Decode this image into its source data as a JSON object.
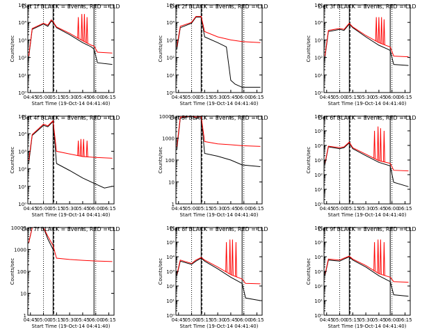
{
  "page": {
    "background": "#ffffff"
  },
  "colors": {
    "events": "#000000",
    "lld": "#ff0000",
    "axes": "#000000"
  },
  "chart_data": [
    {
      "type": "line",
      "title": "Det 1f BLACK = Events, RED = LLD",
      "xlabel": "Start Time (19-Oct-14 04:41:40)",
      "ylabel": "Counts/sec",
      "y_scale": "log",
      "ylim": [
        1,
        100000
      ],
      "yticks": [
        1,
        10,
        100,
        1000,
        10000,
        100000
      ],
      "ytick_labels": [
        "10⁰",
        "10¹",
        "10²",
        "10³",
        "10⁴",
        "10⁵"
      ],
      "xlim": [
        "04:42",
        "06:21"
      ],
      "xtick_labels": [
        "04:45",
        "05:00",
        "05:15",
        "05:30",
        "05:45",
        "06:00",
        "06:15"
      ],
      "lines": {
        "dotted": [
          "05:00",
          "06:00"
        ],
        "dashed": [
          "05:11"
        ],
        "solid": [
          "05:11",
          "05:58"
        ]
      },
      "series": [
        {
          "role": "events",
          "x": [
            "04:43",
            "04:47",
            "05:00",
            "05:05",
            "05:09",
            "05:11",
            "05:15",
            "05:30",
            "05:45",
            "05:55",
            "05:58",
            "06:02",
            "06:19"
          ],
          "y": [
            100,
            4000,
            8000,
            6000,
            12000,
            10000,
            5000,
            2000,
            700,
            400,
            300,
            50,
            40
          ]
        },
        {
          "role": "lld",
          "x": [
            "04:43",
            "04:47",
            "05:00",
            "05:05",
            "05:09",
            "05:11",
            "05:15",
            "05:30",
            "05:45",
            "05:55",
            "05:58",
            "06:02",
            "06:19"
          ],
          "y": [
            120,
            4500,
            9000,
            7000,
            14000,
            11000,
            5500,
            2400,
            900,
            500,
            450,
            200,
            180
          ],
          "spikes": [
            {
              "x": "05:40",
              "y": 20000
            },
            {
              "x": "05:44",
              "y": 30000
            },
            {
              "x": "05:47",
              "y": 30000
            },
            {
              "x": "05:50",
              "y": 20000
            }
          ]
        }
      ]
    },
    {
      "type": "line",
      "title": "Det 2f BLACK = Events, RED = LLD",
      "xlabel": "Start Time (19-Oct-14 04:41:40)",
      "ylabel": "Counts/sec",
      "y_scale": "log",
      "ylim": [
        1,
        100000
      ],
      "yticks": [
        1,
        10,
        100,
        1000,
        10000,
        100000
      ],
      "ytick_labels": [
        "10⁰",
        "10¹",
        "10²",
        "10³",
        "10⁴",
        "10⁵"
      ],
      "xlim": [
        "04:42",
        "06:21"
      ],
      "xtick_labels": [
        "04:45",
        "05:00",
        "05:15",
        "05:30",
        "05:45",
        "06:00",
        "06:15"
      ],
      "lines": {
        "dotted": [
          "05:00",
          "06:00"
        ],
        "dashed": [
          "05:11"
        ],
        "solid": [
          "05:11",
          "05:58"
        ]
      },
      "series": [
        {
          "role": "events",
          "x": [
            "04:43",
            "04:47",
            "05:00",
            "05:05",
            "05:11",
            "05:15",
            "05:30",
            "05:40",
            "05:45",
            "05:50",
            "05:58",
            "06:19"
          ],
          "y": [
            300,
            5000,
            9000,
            20000,
            20000,
            1500,
            700,
            400,
            5,
            3,
            2,
            2
          ]
        },
        {
          "role": "lld",
          "x": [
            "04:43",
            "04:47",
            "05:00",
            "05:05",
            "05:11",
            "05:15",
            "05:30",
            "05:45",
            "05:58",
            "06:19"
          ],
          "y": [
            400,
            6000,
            10000,
            22000,
            22000,
            3000,
            1500,
            1000,
            800,
            700
          ]
        }
      ]
    },
    {
      "type": "line",
      "title": "Det 3f BLACK = Events, RED = LLD",
      "xlabel": "Start Time (19-Oct-14 04:41:40)",
      "ylabel": "Counts/sec",
      "y_scale": "log",
      "ylim": [
        1,
        100000
      ],
      "yticks": [
        1,
        10,
        100,
        1000,
        10000,
        100000
      ],
      "ytick_labels": [
        "10⁰",
        "10¹",
        "10²",
        "10³",
        "10⁴",
        "10⁵"
      ],
      "xlim": [
        "04:42",
        "06:21"
      ],
      "xtick_labels": [
        "04:45",
        "05:00",
        "05:15",
        "05:30",
        "05:45",
        "06:00",
        "06:15"
      ],
      "lines": {
        "dotted": [
          "05:00",
          "06:00"
        ],
        "dashed": [
          "05:11"
        ],
        "solid": [
          "05:11",
          "05:58"
        ]
      },
      "series": [
        {
          "role": "events",
          "x": [
            "04:43",
            "04:47",
            "05:00",
            "05:05",
            "05:11",
            "05:15",
            "05:30",
            "05:45",
            "05:55",
            "05:58",
            "06:02",
            "06:19"
          ],
          "y": [
            100,
            3000,
            4000,
            3500,
            8000,
            5000,
            1500,
            500,
            300,
            250,
            40,
            35
          ]
        },
        {
          "role": "lld",
          "x": [
            "04:43",
            "04:47",
            "05:00",
            "05:05",
            "05:11",
            "05:15",
            "05:30",
            "05:45",
            "05:55",
            "05:58",
            "06:02",
            "06:19"
          ],
          "y": [
            120,
            3500,
            4500,
            4000,
            9000,
            5500,
            1800,
            700,
            450,
            400,
            120,
            110
          ],
          "spikes": [
            {
              "x": "05:42",
              "y": 20000
            },
            {
              "x": "05:45",
              "y": 20000
            },
            {
              "x": "05:48",
              "y": 20000
            },
            {
              "x": "05:51",
              "y": 15000
            }
          ]
        }
      ]
    },
    {
      "type": "line",
      "title": "Det 4f BLACK = Events, RED = LLD",
      "xlabel": "Start Time (19-Oct-14 04:41:40)",
      "ylabel": "Counts/sec",
      "y_scale": "log",
      "ylim": [
        1,
        100000
      ],
      "yticks": [
        1,
        10,
        100,
        1000,
        10000,
        100000
      ],
      "ytick_labels": [
        "10⁰",
        "10¹",
        "10²",
        "10³",
        "10⁴",
        "10⁵"
      ],
      "xlim": [
        "04:42",
        "06:21"
      ],
      "xtick_labels": [
        "04:45",
        "05:00",
        "05:15",
        "05:30",
        "05:45",
        "06:00",
        "06:15"
      ],
      "lines": {
        "dotted": [
          "05:00",
          "06:00"
        ],
        "dashed": [
          "05:11"
        ],
        "solid": [
          "05:11",
          "05:58"
        ]
      },
      "series": [
        {
          "role": "events",
          "x": [
            "04:43",
            "04:47",
            "05:00",
            "05:05",
            "05:11",
            "05:15",
            "05:30",
            "05:45",
            "05:58",
            "06:10",
            "06:19"
          ],
          "y": [
            200,
            8000,
            30000,
            25000,
            50000,
            200,
            80,
            30,
            15,
            8,
            10
          ]
        },
        {
          "role": "lld",
          "x": [
            "04:43",
            "04:47",
            "05:00",
            "05:05",
            "05:11",
            "05:15",
            "05:30",
            "05:45",
            "05:58",
            "06:19"
          ],
          "y": [
            300,
            9000,
            35000,
            28000,
            55000,
            1000,
            700,
            500,
            450,
            400
          ],
          "spikes": [
            {
              "x": "05:40",
              "y": 4000
            },
            {
              "x": "05:43",
              "y": 5000
            },
            {
              "x": "05:46",
              "y": 5000
            },
            {
              "x": "05:50",
              "y": 4000
            }
          ]
        }
      ]
    },
    {
      "type": "line",
      "title": "Det 5f BLACK = Events, RED = LLD",
      "xlabel": "Start Time (19-Oct-14 04:41:40)",
      "ylabel": "Counts/sec",
      "y_scale": "log",
      "ylim": [
        1,
        10000
      ],
      "yticks": [
        1,
        10,
        100,
        1000,
        10000
      ],
      "ytick_labels": [
        "1",
        "10",
        "100",
        "1000",
        "10000"
      ],
      "xlim": [
        "04:42",
        "06:21"
      ],
      "xtick_labels": [
        "04:45",
        "05:00",
        "05:15",
        "05:30",
        "05:45",
        "06:00",
        "06:15"
      ],
      "lines": {
        "dotted": [
          "05:00",
          "06:00"
        ],
        "dashed": [
          "05:11"
        ],
        "solid": [
          "05:11",
          "05:58"
        ]
      },
      "series": [
        {
          "role": "events",
          "x": [
            "04:43",
            "04:47",
            "05:00",
            "05:05",
            "05:11",
            "05:15",
            "05:30",
            "05:45",
            "05:58",
            "06:19"
          ],
          "y": [
            300,
            8000,
            10000,
            8000,
            10000,
            200,
            150,
            100,
            60,
            50
          ]
        },
        {
          "role": "lld",
          "x": [
            "04:43",
            "04:47",
            "05:00",
            "05:05",
            "05:11",
            "05:15",
            "05:30",
            "05:45",
            "05:58",
            "06:19"
          ],
          "y": [
            400,
            9000,
            10000,
            9000,
            10000,
            700,
            550,
            500,
            450,
            420
          ]
        }
      ]
    },
    {
      "type": "line",
      "title": "Det 6f BLACK = Events, RED = LLD",
      "xlabel": "Start Time (19-Oct-14 04:41:40)",
      "ylabel": "Counts/sec",
      "y_scale": "log",
      "ylim": [
        1,
        1000000
      ],
      "yticks": [
        1,
        10,
        100,
        1000,
        10000,
        100000,
        1000000
      ],
      "ytick_labels": [
        "10⁰",
        "10¹",
        "10²",
        "10³",
        "10⁴",
        "10⁵",
        "10⁶"
      ],
      "xlim": [
        "04:42",
        "06:21"
      ],
      "xtick_labels": [
        "04:45",
        "05:00",
        "05:15",
        "05:30",
        "05:45",
        "06:00",
        "06:15"
      ],
      "lines": {
        "dotted": [
          "05:00",
          "06:00"
        ],
        "dashed": [
          "05:11"
        ],
        "solid": [
          "05:11",
          "05:58"
        ]
      },
      "series": [
        {
          "role": "events",
          "x": [
            "04:43",
            "04:47",
            "05:00",
            "05:05",
            "05:11",
            "05:15",
            "05:30",
            "05:45",
            "05:58",
            "06:02",
            "06:19"
          ],
          "y": [
            500,
            8000,
            6000,
            7000,
            15000,
            6000,
            2000,
            700,
            400,
            30,
            15
          ]
        },
        {
          "role": "lld",
          "x": [
            "04:43",
            "04:47",
            "05:00",
            "05:05",
            "05:11",
            "05:15",
            "05:30",
            "05:45",
            "05:58",
            "06:02",
            "06:19"
          ],
          "y": [
            600,
            9000,
            7000,
            8000,
            17000,
            7000,
            2500,
            900,
            600,
            200,
            180
          ],
          "spikes": [
            {
              "x": "05:40",
              "y": 100000
            },
            {
              "x": "05:44",
              "y": 200000
            },
            {
              "x": "05:47",
              "y": 150000
            },
            {
              "x": "05:51",
              "y": 100000
            }
          ]
        }
      ]
    },
    {
      "type": "line",
      "title": "Det 7f BLACK = Events, RED = LLD",
      "xlabel": "Start Time (19-Oct-14 04:41:40)",
      "ylabel": "Counts/sec",
      "y_scale": "log",
      "ylim": [
        1,
        10000
      ],
      "yticks": [
        1,
        10,
        100,
        1000,
        10000
      ],
      "ytick_labels": [
        "1",
        "10",
        "100",
        "1000",
        "10000"
      ],
      "xlim": [
        "04:42",
        "06:21"
      ],
      "xtick_labels": [
        "04:45",
        "05:00",
        "05:15",
        "05:30",
        "05:45",
        "06:00",
        "06:15"
      ],
      "lines": {
        "dotted": [
          "05:00",
          "06:00"
        ],
        "dashed": [
          "05:11"
        ],
        "solid": [
          "05:11",
          "05:58"
        ]
      },
      "series": [
        {
          "role": "events",
          "x": [
            "04:43",
            "04:47",
            "05:00",
            "05:05",
            "05:11"
          ],
          "y": [
            2000,
            10000,
            10000,
            3000,
            1000
          ]
        },
        {
          "role": "lld",
          "x": [
            "04:43",
            "04:47",
            "05:00",
            "05:05",
            "05:11",
            "05:15",
            "05:30",
            "05:45",
            "05:58",
            "06:19"
          ],
          "y": [
            2000,
            10000,
            10000,
            4000,
            1500,
            400,
            350,
            320,
            300,
            280
          ]
        }
      ]
    },
    {
      "type": "line",
      "title": "Det 8f BLACK = Events, RED = LLD",
      "xlabel": "Start Time (19-Oct-14 04:41:40)",
      "ylabel": "Counts/sec",
      "y_scale": "log",
      "ylim": [
        1,
        1000000
      ],
      "yticks": [
        1,
        10,
        100,
        1000,
        10000,
        100000,
        1000000
      ],
      "ytick_labels": [
        "10⁰",
        "10¹",
        "10²",
        "10³",
        "10⁴",
        "10⁵",
        "10⁶"
      ],
      "xlim": [
        "04:42",
        "06:21"
      ],
      "xtick_labels": [
        "04:45",
        "05:00",
        "05:15",
        "05:30",
        "05:45",
        "06:00",
        "06:15"
      ],
      "lines": {
        "dotted": [
          "05:00",
          "06:00"
        ],
        "dashed": [
          "05:11"
        ],
        "solid": [
          "05:11",
          "05:58"
        ]
      },
      "series": [
        {
          "role": "events",
          "x": [
            "04:43",
            "04:47",
            "05:00",
            "05:05",
            "05:11",
            "05:15",
            "05:30",
            "05:45",
            "05:58",
            "06:02",
            "06:19"
          ],
          "y": [
            500,
            5000,
            3000,
            5000,
            8000,
            5000,
            1500,
            400,
            150,
            15,
            10
          ]
        },
        {
          "role": "lld",
          "x": [
            "04:43",
            "04:47",
            "05:00",
            "05:05",
            "05:11",
            "05:15",
            "05:30",
            "05:45",
            "05:58",
            "06:02",
            "06:19"
          ],
          "y": [
            600,
            6000,
            3500,
            6000,
            9000,
            6000,
            2000,
            600,
            300,
            150,
            140
          ],
          "spikes": [
            {
              "x": "05:40",
              "y": 100000
            },
            {
              "x": "05:44",
              "y": 150000
            },
            {
              "x": "05:47",
              "y": 150000
            },
            {
              "x": "05:51",
              "y": 100000
            }
          ]
        }
      ]
    },
    {
      "type": "line",
      "title": "Det 9f BLACK = Events, RED = LLD",
      "xlabel": "Start Time (19-Oct-14 04:41:40)",
      "ylabel": "Counts/sec",
      "y_scale": "log",
      "ylim": [
        1,
        1000000
      ],
      "yticks": [
        1,
        10,
        100,
        1000,
        10000,
        100000,
        1000000
      ],
      "ytick_labels": [
        "10⁰",
        "10¹",
        "10²",
        "10³",
        "10⁴",
        "10⁵",
        "10⁶"
      ],
      "xlim": [
        "04:42",
        "06:21"
      ],
      "xtick_labels": [
        "04:45",
        "05:00",
        "05:15",
        "05:30",
        "05:45",
        "06:00",
        "06:15"
      ],
      "lines": {
        "dotted": [
          "05:00",
          "06:00"
        ],
        "dashed": [
          "05:11"
        ],
        "solid": [
          "05:11",
          "05:58"
        ]
      },
      "series": [
        {
          "role": "events",
          "x": [
            "04:43",
            "04:47",
            "05:00",
            "05:05",
            "05:11",
            "05:15",
            "05:30",
            "05:45",
            "05:58",
            "06:02",
            "06:19"
          ],
          "y": [
            500,
            6000,
            5000,
            7000,
            10000,
            6000,
            2000,
            500,
            200,
            25,
            20
          ]
        },
        {
          "role": "lld",
          "x": [
            "04:43",
            "04:47",
            "05:00",
            "05:05",
            "05:11",
            "05:15",
            "05:30",
            "05:45",
            "05:58",
            "06:02",
            "06:19"
          ],
          "y": [
            600,
            7000,
            6000,
            8000,
            11000,
            7000,
            2500,
            700,
            400,
            200,
            180
          ],
          "spikes": [
            {
              "x": "05:40",
              "y": 100000
            },
            {
              "x": "05:44",
              "y": 150000
            },
            {
              "x": "05:47",
              "y": 150000
            },
            {
              "x": "05:51",
              "y": 100000
            }
          ]
        }
      ]
    }
  ]
}
